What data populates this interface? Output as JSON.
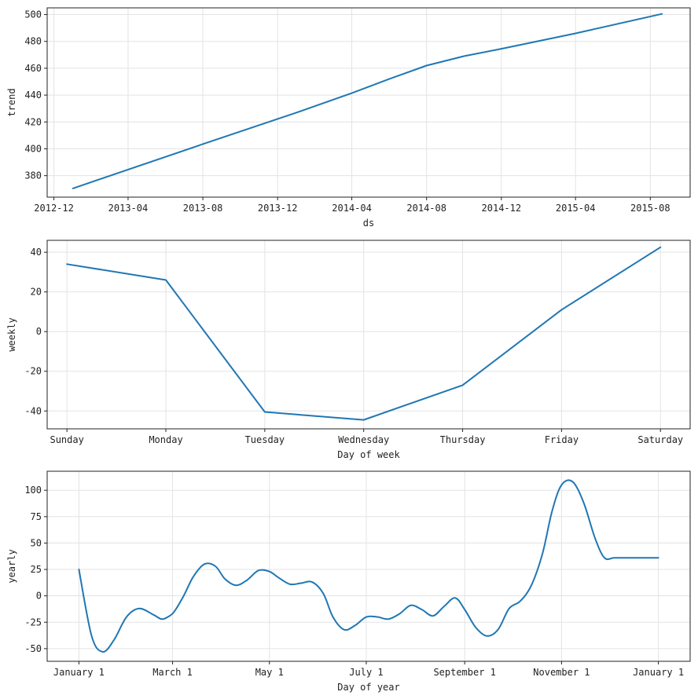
{
  "colors": {
    "line": "#1f77b4",
    "grid": "#e3e3e3",
    "axis": "#222222"
  },
  "chart_data": [
    {
      "type": "line",
      "xlabel": "ds",
      "ylabel": "trend",
      "grid": true,
      "x_type": "date",
      "xlim": [
        "2012-11-20",
        "2015-10-05"
      ],
      "ylim": [
        364,
        505
      ],
      "x_ticks": [
        "2012-12",
        "2013-04",
        "2013-08",
        "2013-12",
        "2014-04",
        "2014-08",
        "2014-12",
        "2015-04",
        "2015-08"
      ],
      "x_tick_dates": [
        "2012-12-01",
        "2013-04-01",
        "2013-08-01",
        "2013-12-01",
        "2014-04-01",
        "2014-08-01",
        "2014-12-01",
        "2015-04-01",
        "2015-08-01"
      ],
      "y_ticks": [
        380,
        400,
        420,
        440,
        460,
        480,
        500
      ],
      "y_tick_labels": [
        "380",
        "400",
        "420",
        "440",
        "460",
        "480",
        "500"
      ],
      "x": [
        "2013-01-01",
        "2013-08-01",
        "2014-01-01",
        "2014-04-01",
        "2014-06-01",
        "2014-08-01",
        "2014-10-01",
        "2014-12-01",
        "2015-04-01",
        "2015-08-20"
      ],
      "y": [
        370.5,
        403.5,
        427,
        441.5,
        452,
        462,
        469,
        474.5,
        486,
        500.5
      ]
    },
    {
      "type": "line",
      "xlabel": "Day of week",
      "ylabel": "weekly",
      "grid": true,
      "xlim": [
        -0.2,
        6.3
      ],
      "ylim": [
        -49,
        46
      ],
      "categories": [
        "Sunday",
        "Monday",
        "Tuesday",
        "Wednesday",
        "Thursday",
        "Friday",
        "Saturday"
      ],
      "y_ticks": [
        -40,
        -20,
        0,
        20,
        40
      ],
      "y_tick_labels": [
        "-40",
        "-20",
        "0",
        "20",
        "40"
      ],
      "values": [
        34,
        26,
        -40.5,
        -44.5,
        -27,
        11,
        42.5
      ]
    },
    {
      "type": "line",
      "xlabel": "Day of year",
      "ylabel": "yearly",
      "grid": true,
      "xlim": [
        -20,
        385
      ],
      "ylim": [
        -62,
        118
      ],
      "x_ticks": [
        "January 1",
        "March 1",
        "May 1",
        "July 1",
        "September 1",
        "November 1",
        "January 1"
      ],
      "x_tick_days": [
        0,
        59,
        120,
        181,
        243,
        304,
        365
      ],
      "y_ticks": [
        -50,
        -25,
        0,
        25,
        50,
        75,
        100
      ],
      "y_tick_labels": [
        "-50",
        "-25",
        "0",
        "25",
        "50",
        "75",
        "100"
      ],
      "x": [
        0,
        8,
        15,
        22,
        30,
        38,
        47,
        52,
        56,
        60,
        66,
        72,
        79,
        86,
        92,
        99,
        106,
        113,
        120,
        126,
        133,
        140,
        147,
        154,
        160,
        167,
        174,
        181,
        188,
        195,
        202,
        209,
        216,
        223,
        230,
        237,
        243,
        250,
        257,
        264,
        271,
        278,
        285,
        292,
        298,
        304,
        311,
        318,
        325,
        331,
        337,
        343,
        350,
        356,
        361,
        365
      ],
      "y": [
        25,
        -38,
        -53,
        -42,
        -20,
        -12,
        -18,
        -22,
        -20,
        -15,
        0,
        18,
        30,
        28,
        16,
        10,
        15,
        24,
        23,
        17,
        11,
        12,
        13,
        2,
        -20,
        -32,
        -28,
        -20,
        -20,
        -22,
        -17,
        -9,
        -13,
        -19,
        -10,
        -2,
        -13,
        -30,
        -38,
        -32,
        -12,
        -5,
        10,
        40,
        80,
        105,
        108,
        88,
        55,
        36,
        36,
        36,
        36,
        36,
        36,
        36
      ]
    }
  ]
}
